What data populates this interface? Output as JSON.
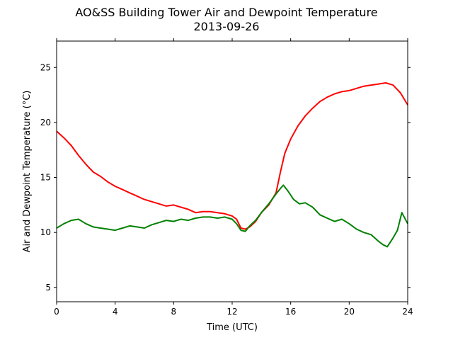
{
  "chart_data": {
    "type": "line",
    "title": "AO&SS Building Tower Air and Dewpoint Temperature",
    "subtitle": "2013-09-26",
    "xlabel": "Time (UTC)",
    "ylabel": "Air and Dewpoint Temperature (°C)",
    "xlim": [
      0,
      24
    ],
    "ylim": [
      3.7,
      27.4
    ],
    "xticks": [
      0,
      4,
      8,
      12,
      16,
      20,
      24
    ],
    "yticks": [
      5,
      10,
      15,
      20,
      25
    ],
    "grid": false,
    "legend": "none",
    "series": [
      {
        "color": "#ff0000",
        "x": [
          0,
          0.5,
          1,
          1.5,
          2,
          2.5,
          3,
          3.5,
          4,
          4.5,
          5,
          5.5,
          6,
          6.5,
          7,
          7.5,
          8,
          8.5,
          9,
          9.5,
          10,
          10.5,
          11,
          11.5,
          12,
          12.3,
          12.6,
          12.9,
          13.2,
          13.6,
          14,
          14.5,
          15,
          15.3,
          15.6,
          16,
          16.5,
          17,
          17.5,
          18,
          18.5,
          19,
          19.5,
          20,
          20.5,
          21,
          21.5,
          22,
          22.5,
          23,
          23.5,
          24
        ],
        "y": [
          19.2,
          18.6,
          17.9,
          17.0,
          16.2,
          15.5,
          15.1,
          14.6,
          14.2,
          13.9,
          13.6,
          13.3,
          13.0,
          12.8,
          12.6,
          12.4,
          12.5,
          12.3,
          12.1,
          11.8,
          11.9,
          11.9,
          11.8,
          11.7,
          11.5,
          11.2,
          10.4,
          10.3,
          10.5,
          11.0,
          11.8,
          12.5,
          13.6,
          15.5,
          17.2,
          18.5,
          19.7,
          20.6,
          21.3,
          21.9,
          22.3,
          22.6,
          22.8,
          22.9,
          23.1,
          23.3,
          23.4,
          23.5,
          23.6,
          23.4,
          22.7,
          21.6
        ]
      },
      {
        "color": "#008000",
        "x": [
          0,
          0.5,
          1,
          1.5,
          2,
          2.5,
          3,
          3.5,
          4,
          4.5,
          5,
          5.5,
          6,
          6.5,
          7,
          7.5,
          8,
          8.5,
          9,
          9.5,
          10,
          10.5,
          11,
          11.5,
          12,
          12.3,
          12.6,
          12.9,
          13.2,
          13.6,
          14,
          14.5,
          15,
          15.3,
          15.5,
          15.8,
          16.2,
          16.6,
          17,
          17.5,
          18,
          18.5,
          19,
          19.5,
          20,
          20.5,
          21,
          21.5,
          22,
          22.3,
          22.6,
          23,
          23.3,
          23.6,
          24
        ],
        "y": [
          10.4,
          10.8,
          11.1,
          11.2,
          10.8,
          10.5,
          10.4,
          10.3,
          10.2,
          10.4,
          10.6,
          10.5,
          10.4,
          10.7,
          10.9,
          11.1,
          11.0,
          11.2,
          11.1,
          11.3,
          11.4,
          11.4,
          11.3,
          11.4,
          11.2,
          10.8,
          10.2,
          10.1,
          10.6,
          11.1,
          11.8,
          12.6,
          13.5,
          14.0,
          14.3,
          13.8,
          13.0,
          12.6,
          12.7,
          12.3,
          11.6,
          11.3,
          11.0,
          11.2,
          10.8,
          10.3,
          10.0,
          9.8,
          9.2,
          8.9,
          8.7,
          9.5,
          10.2,
          11.8,
          10.8
        ]
      }
    ]
  }
}
